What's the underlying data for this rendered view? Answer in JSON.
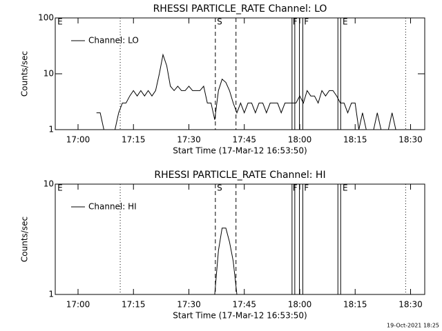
{
  "chart_data": [
    {
      "type": "line",
      "title": "RHESSI PARTICLE_RATE Channel: LO",
      "xlabel": "Start Time (17-Mar-12 16:53:50)",
      "ylabel": "Counts/sec",
      "xlim": [
        "16:53:50",
        "18:33:50"
      ],
      "xticks": [
        "17:00",
        "17:15",
        "17:30",
        "17:45",
        "18:00",
        "18:15",
        "18:30"
      ],
      "ylim": [
        1,
        100
      ],
      "yticks": [
        1,
        10,
        100
      ],
      "ylog": true,
      "legend": "upper left",
      "x": [
        "16:54",
        "16:55",
        "16:56",
        "16:57",
        "16:58",
        "16:59",
        "17:00",
        "17:01",
        "17:02",
        "17:03",
        "17:04",
        "17:05",
        "17:06",
        "17:07",
        "17:08",
        "17:09",
        "17:10",
        "17:11",
        "17:12",
        "17:13",
        "17:14",
        "17:15",
        "17:16",
        "17:17",
        "17:18",
        "17:19",
        "17:20",
        "17:21",
        "17:22",
        "17:23",
        "17:24",
        "17:25",
        "17:26",
        "17:27",
        "17:28",
        "17:29",
        "17:30",
        "17:31",
        "17:32",
        "17:33",
        "17:34",
        "17:35",
        "17:36",
        "17:37",
        "17:38",
        "17:39",
        "17:40",
        "17:41",
        "17:42",
        "17:43",
        "17:44",
        "17:45",
        "17:46",
        "17:47",
        "17:48",
        "17:49",
        "17:50",
        "17:51",
        "17:52",
        "17:53",
        "17:54",
        "17:55",
        "17:56",
        "17:57",
        "17:58",
        "17:59",
        "18:00",
        "18:01",
        "18:02",
        "18:03",
        "18:04",
        "18:05",
        "18:06",
        "18:07",
        "18:08",
        "18:09",
        "18:10",
        "18:11",
        "18:12",
        "18:13",
        "18:14",
        "18:15",
        "18:16",
        "18:17",
        "18:18",
        "18:19",
        "18:20",
        "18:21",
        "18:22",
        "18:23",
        "18:24",
        "18:25",
        "18:26",
        "18:27",
        "18:28",
        "18:29",
        "18:30",
        "18:31",
        "18:32",
        "18:33"
      ],
      "series": [
        {
          "name": "Channel: LO",
          "color": "#000000",
          "values": [
            null,
            null,
            null,
            null,
            null,
            null,
            null,
            null,
            null,
            null,
            null,
            2,
            2,
            1,
            1,
            1,
            1,
            2,
            3,
            3,
            4,
            5,
            4,
            5,
            4,
            5,
            4,
            5,
            10,
            22,
            14,
            6,
            5,
            6,
            5,
            5,
            6,
            5,
            5,
            5,
            6,
            3,
            3,
            1.5,
            5,
            8,
            7,
            5,
            3,
            2,
            3,
            2,
            3,
            3,
            2,
            3,
            3,
            2,
            3,
            3,
            3,
            2,
            3,
            3,
            3,
            3,
            4,
            3,
            5,
            4,
            4,
            3,
            5,
            4,
            5,
            5,
            4,
            3,
            3,
            2,
            3,
            3,
            1,
            2,
            1,
            1,
            1,
            2,
            1,
            1,
            1,
            2,
            1,
            null,
            null,
            null,
            null,
            null,
            null,
            null
          ]
        }
      ],
      "vlines": [
        {
          "x": "17:11:25",
          "style": "dotted"
        },
        {
          "x": "17:37:10",
          "style": "dashed"
        },
        {
          "x": "17:42:45",
          "style": "dashed"
        },
        {
          "x": "17:57:55",
          "style": "solid"
        },
        {
          "x": "17:58:40",
          "style": "solid"
        },
        {
          "x": "17:59:55",
          "style": "solid"
        },
        {
          "x": "18:00:50",
          "style": "solid"
        },
        {
          "x": "18:10:20",
          "style": "solid"
        },
        {
          "x": "18:11:05",
          "style": "solid"
        },
        {
          "x": "18:28:40",
          "style": "dotted"
        }
      ],
      "labels": [
        {
          "text": "E",
          "x": "16:54:25"
        },
        {
          "text": "S",
          "x": "17:37:35"
        },
        {
          "text": "F",
          "x": "17:58:05"
        },
        {
          "text": "F",
          "x": "18:01:10"
        },
        {
          "text": "E",
          "x": "18:11:35"
        }
      ]
    },
    {
      "type": "line",
      "title": "RHESSI PARTICLE_RATE Channel: HI",
      "xlabel": "Start Time (17-Mar-12 16:53:50)",
      "ylabel": "Counts/sec",
      "xlim": [
        "16:53:50",
        "18:33:50"
      ],
      "xticks": [
        "17:00",
        "17:15",
        "17:30",
        "17:45",
        "18:00",
        "18:15",
        "18:30"
      ],
      "ylim": [
        1,
        10
      ],
      "yticks": [
        1,
        10
      ],
      "ylog": true,
      "legend": "upper left",
      "x": [
        "17:37",
        "17:38",
        "17:39",
        "17:40",
        "17:41",
        "17:42",
        "17:43"
      ],
      "series": [
        {
          "name": "Channel: HI",
          "color": "#000000",
          "values": [
            1,
            2.5,
            4,
            4,
            3,
            2,
            1
          ]
        }
      ],
      "vlines": [
        {
          "x": "17:11:25",
          "style": "dotted"
        },
        {
          "x": "17:37:10",
          "style": "dashed"
        },
        {
          "x": "17:42:45",
          "style": "dashed"
        },
        {
          "x": "17:57:55",
          "style": "solid"
        },
        {
          "x": "17:58:40",
          "style": "solid"
        },
        {
          "x": "17:59:55",
          "style": "solid"
        },
        {
          "x": "18:00:50",
          "style": "solid"
        },
        {
          "x": "18:10:20",
          "style": "solid"
        },
        {
          "x": "18:11:05",
          "style": "solid"
        },
        {
          "x": "18:28:40",
          "style": "dotted"
        }
      ],
      "labels": [
        {
          "text": "E",
          "x": "16:54:25"
        },
        {
          "text": "S",
          "x": "17:37:35"
        },
        {
          "text": "F",
          "x": "17:58:05"
        },
        {
          "text": "F",
          "x": "18:01:10"
        },
        {
          "text": "E",
          "x": "18:11:35"
        }
      ]
    }
  ],
  "footer": "19-Oct-2021 18:25"
}
